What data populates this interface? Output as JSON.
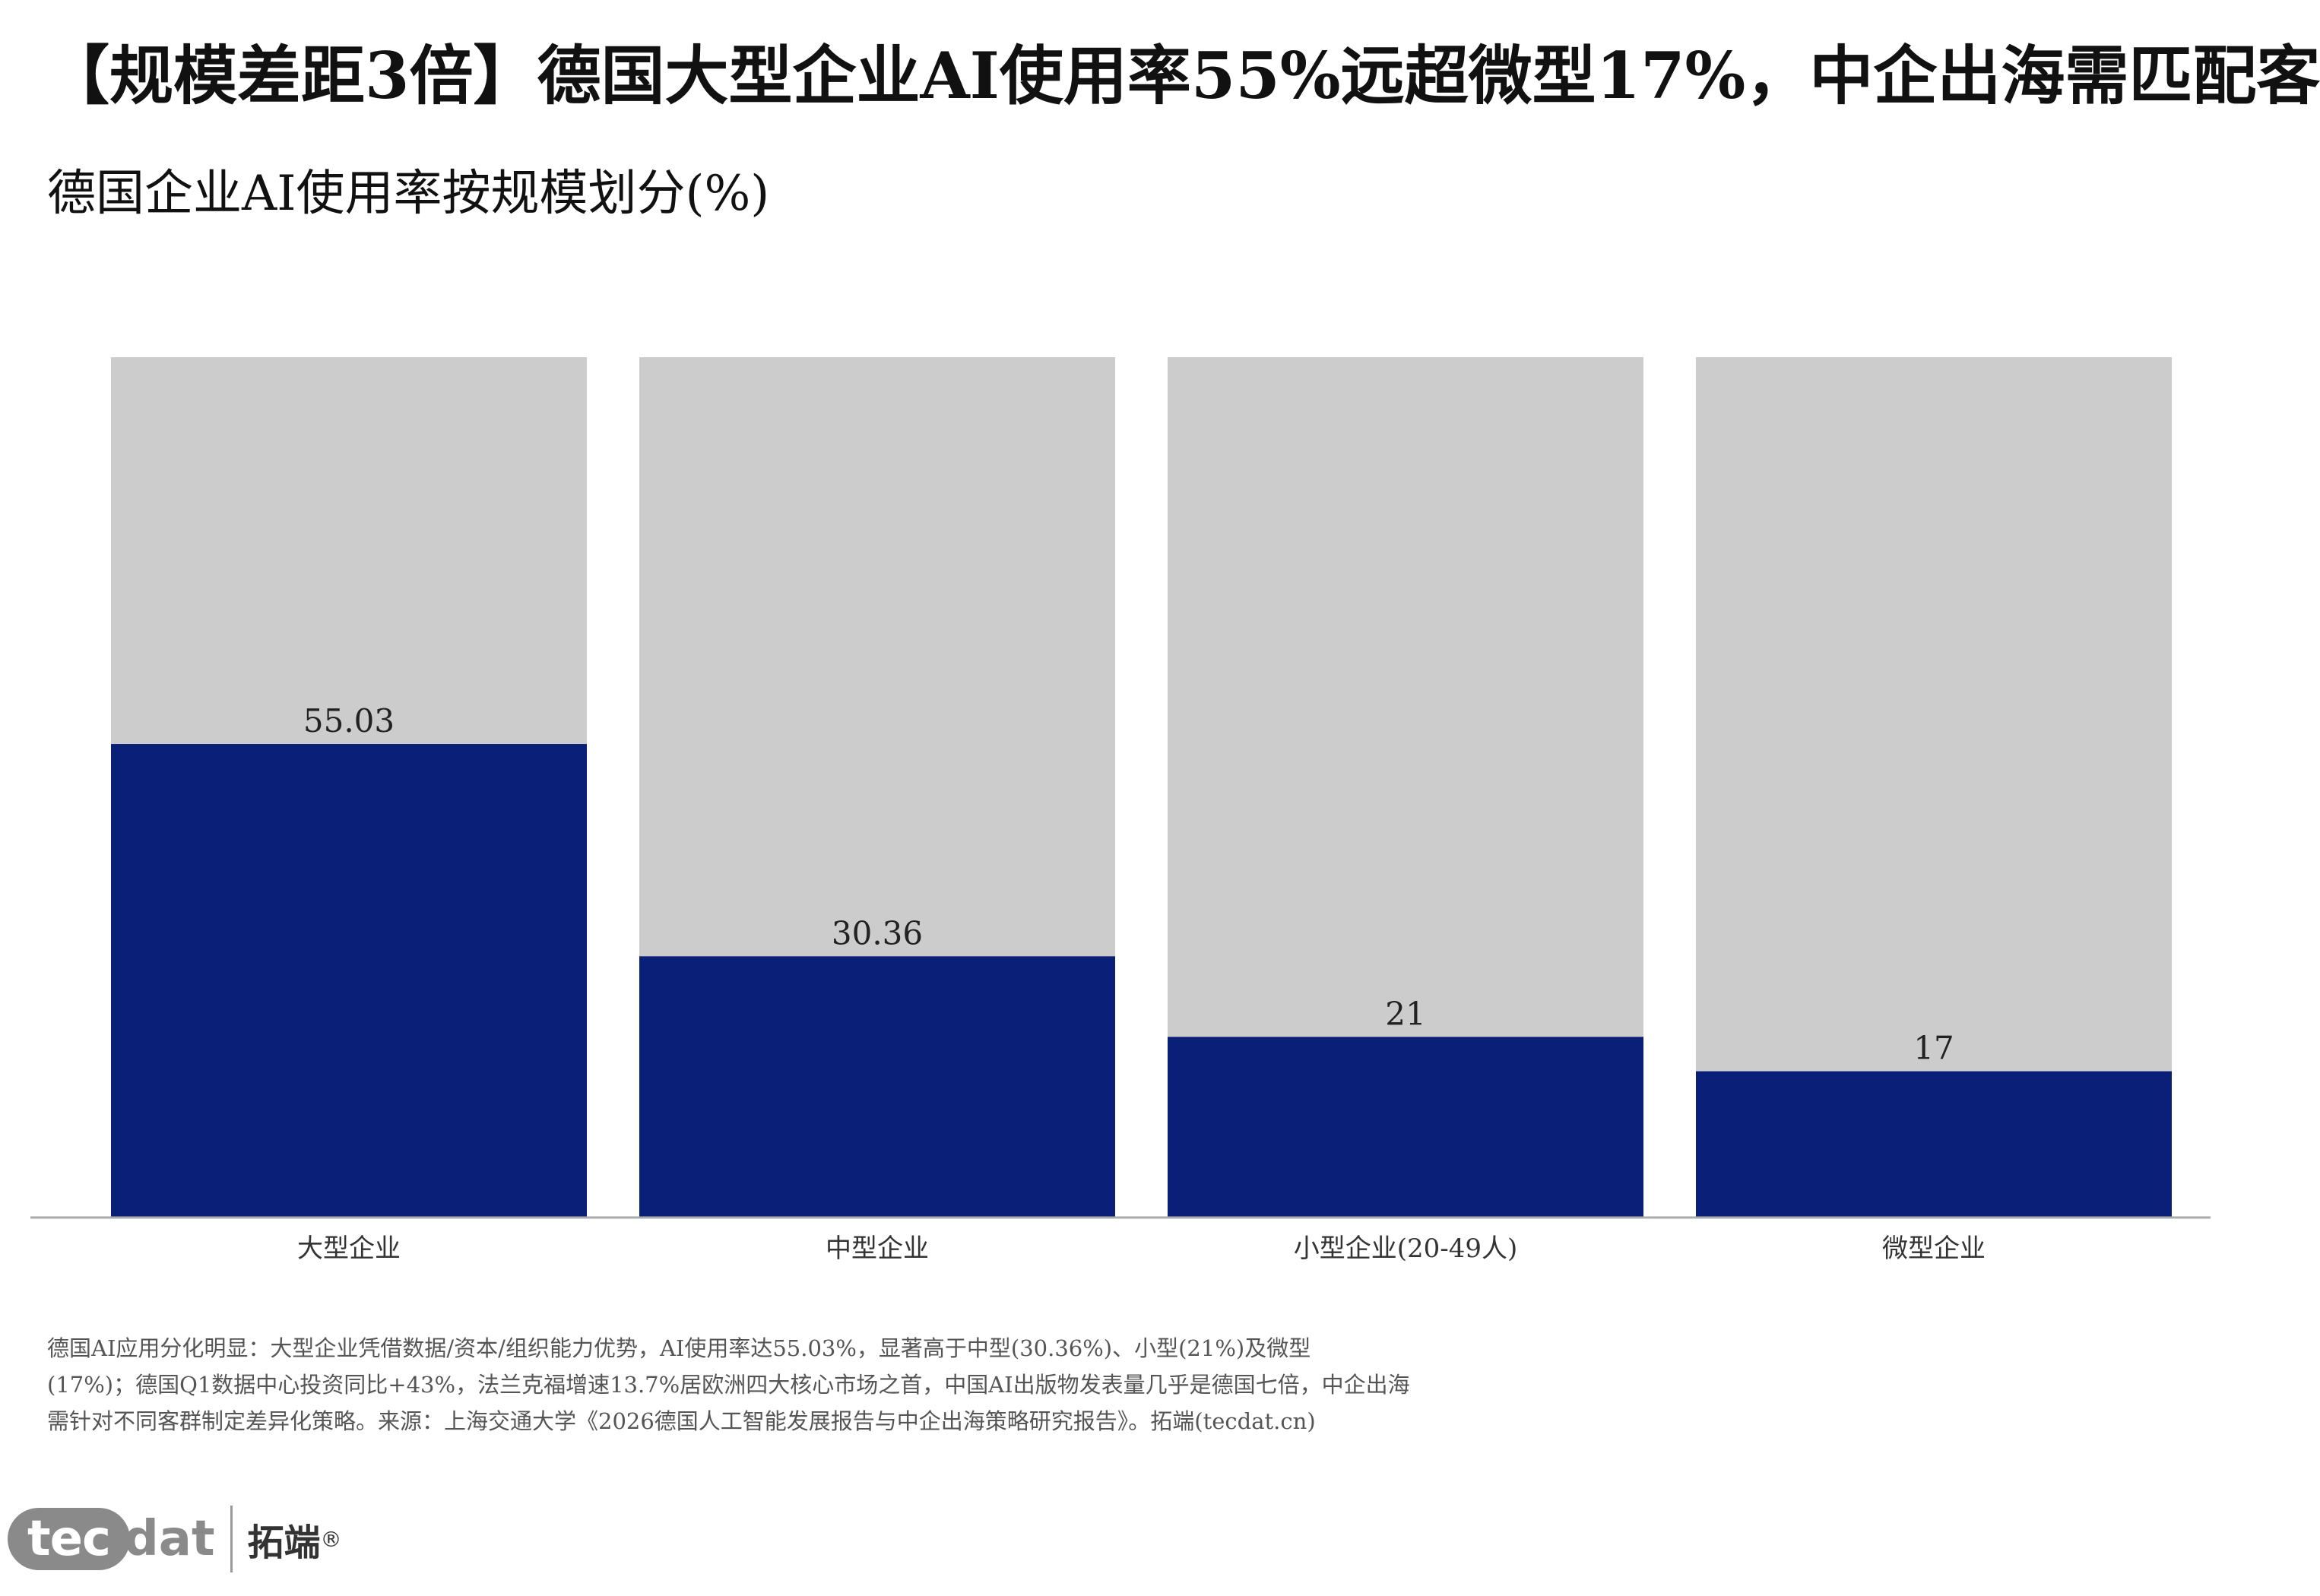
{
  "headline": "【规模差距3倍】德国大型企业AI使用率55%远超微型17%，中企出海需匹配客",
  "chart_data": {
    "type": "bar",
    "title": "德国企业AI使用率按规模划分(%)",
    "categories": [
      "大型企业",
      "中型企业",
      "小型企业(20-49人)",
      "微型企业"
    ],
    "values": [
      55.03,
      30.36,
      21,
      17
    ],
    "value_labels": [
      "55.03",
      "30.36",
      "21",
      "17"
    ],
    "ylim": [
      0,
      100
    ],
    "stacked_background": true,
    "colors": {
      "bar": "#0a1f78",
      "background": "#cccccc",
      "axis": "#aaaaaa",
      "label": "#222222"
    },
    "grid": false,
    "legend": "none"
  },
  "footnote": {
    "line1": "德国AI应用分化明显：大型企业凭借数据/资本/组织能力优势，AI使用率达55.03%，显著高于中型(30.36%)、小型(21%)及微型",
    "line2": "(17%)；德国Q1数据中心投资同比+43%，法兰克福增速13.7%居欧洲四大核心市场之首，中国AI出版物发表量几乎是德国七倍，中企出海",
    "line3": "需针对不同客群制定差异化策略。来源：上海交通大学《2026德国人工智能发展报告与中企出海策略研究报告》。拓端(tecdat.cn)"
  },
  "logo": {
    "tec": "tec",
    "dat": "dat",
    "cn": "拓端",
    "reg": "®"
  }
}
